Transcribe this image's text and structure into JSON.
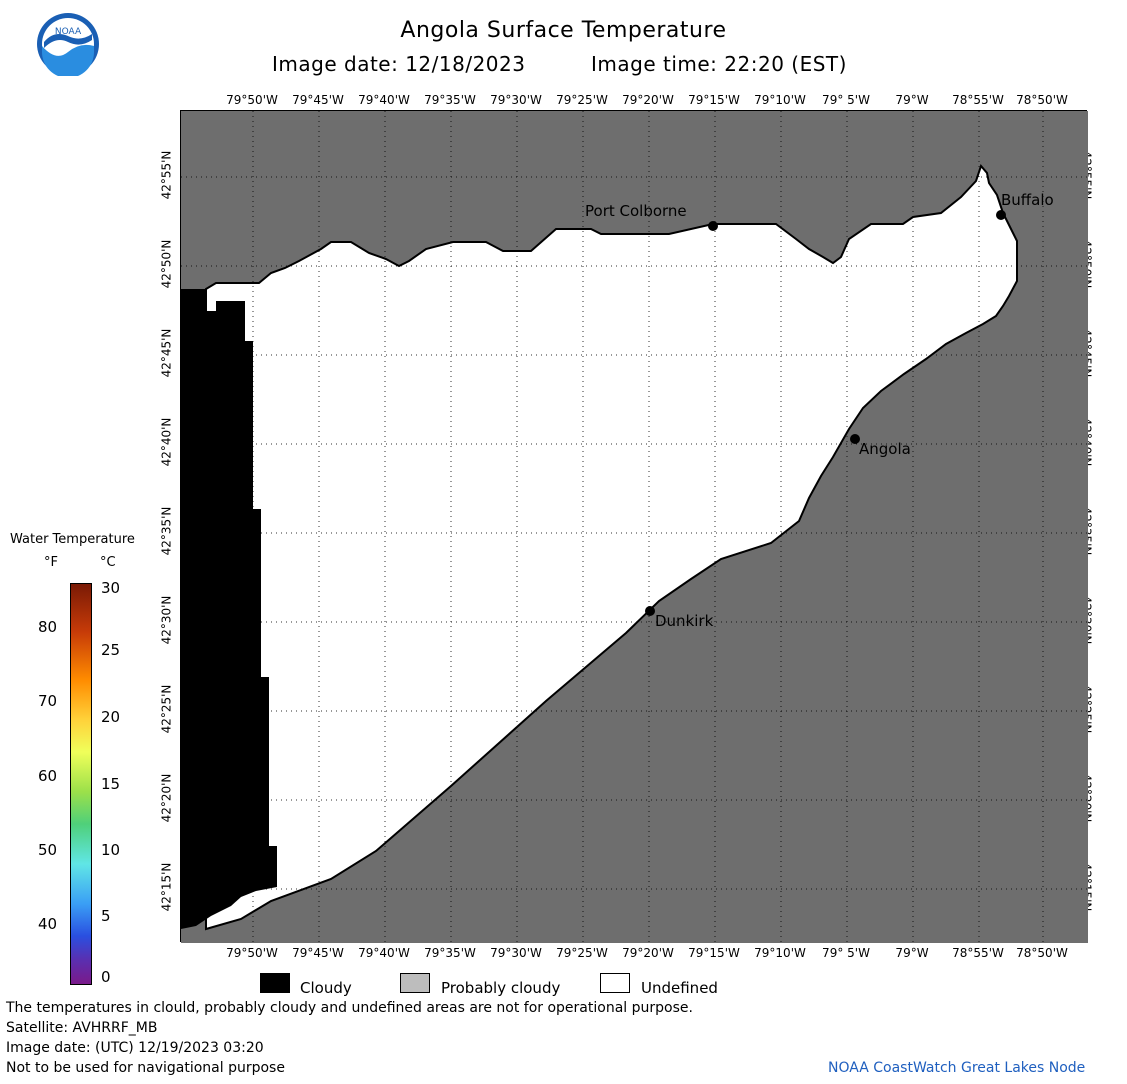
{
  "header": {
    "title": "Angola Surface Temperature",
    "image_date": "Image date: 12/18/2023",
    "image_time": "Image time: 22:20 (EST)"
  },
  "logo": {
    "text": "NOAA"
  },
  "map": {
    "lon_labels": [
      "79°50'W",
      "79°45'W",
      "79°40'W",
      "79°35'W",
      "79°30'W",
      "79°25'W",
      "79°20'W",
      "79°15'W",
      "79°10'W",
      "79° 5'W",
      "79°W",
      "78°55'W",
      "78°50'W"
    ],
    "lat_labels": [
      "42°55'N",
      "42°50'N",
      "42°45'N",
      "42°40'N",
      "42°35'N",
      "42°30'N",
      "42°25'N",
      "42°20'N",
      "42°15'N"
    ],
    "cities": {
      "port_colborne": "Port Colborne",
      "buffalo": "Buffalo",
      "angola": "Angola",
      "dunkirk": "Dunkirk"
    },
    "colors": {
      "land": "#6e6e6e",
      "cloudy": "#000000",
      "undefined": "#ffffff"
    }
  },
  "colorbar": {
    "title": "Water Temperature",
    "unit_f": "°F",
    "unit_c": "°C",
    "f_ticks": [
      "80",
      "70",
      "60",
      "50",
      "40"
    ],
    "c_ticks": [
      "30",
      "25",
      "20",
      "15",
      "10",
      "5",
      "0"
    ]
  },
  "key": {
    "cloudy": "Cloudy",
    "probably_cloudy": "Probably cloudy",
    "undefined": "Undefined"
  },
  "footer": {
    "line1": "The temperatures in clould, probably cloudy and undefined areas are not for operational purpose.",
    "line2": "Satellite: AVHRRF_MB",
    "line3": "Image date: (UTC) 12/19/2023  03:20",
    "line4": "Not to be used for navigational purpose",
    "credit": "NOAA CoastWatch Great Lakes Node"
  }
}
